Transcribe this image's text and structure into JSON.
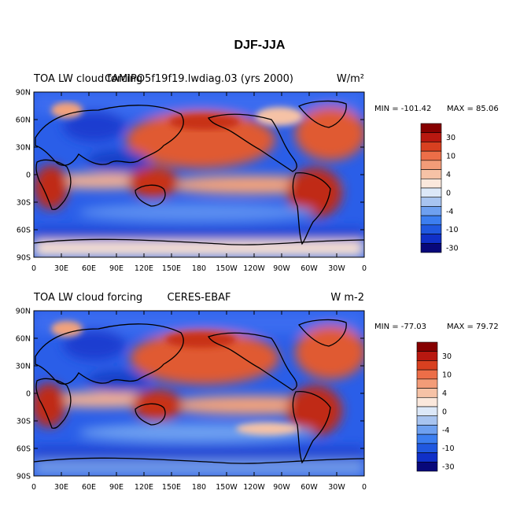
{
  "figure": {
    "title": "DJF-JJA"
  },
  "colorbar_palette": [
    "#08087a",
    "#1030c8",
    "#2058e0",
    "#3c7ef0",
    "#6ea0f0",
    "#a8c4f0",
    "#dce8f8",
    "#fbe8dc",
    "#f6c2a6",
    "#f39c78",
    "#ec6e48",
    "#d84020",
    "#b81810",
    "#860000"
  ],
  "colorbar_labels": [
    "30",
    "10",
    "4",
    "0",
    "-4",
    "-10",
    "-30"
  ],
  "lat_ticks": [
    "90N",
    "60N",
    "30N",
    "0",
    "30S",
    "60S",
    "90S"
  ],
  "lon_ticks": [
    "0",
    "30E",
    "60E",
    "90E",
    "120E",
    "150E",
    "180",
    "150W",
    "120W",
    "90W",
    "60W",
    "30W",
    "0"
  ],
  "panels": [
    {
      "id": "model",
      "left_title": "TOA LW cloud forcing",
      "center_title": "CAMIPO5f19f19.lwdiag.03 (yrs 2000)",
      "units": "W/m²",
      "min_label": "MIN = -101.42",
      "max_label": "MAX =  85.06",
      "min": -101.42,
      "max": 85.06
    },
    {
      "id": "obs",
      "left_title": "TOA LW cloud forcing",
      "center_title": "CERES-EBAF",
      "units": "W m-2",
      "min_label": "MIN = -77.03",
      "max_label": "MAX =  79.72",
      "min": -77.03,
      "max": 79.72
    }
  ]
}
